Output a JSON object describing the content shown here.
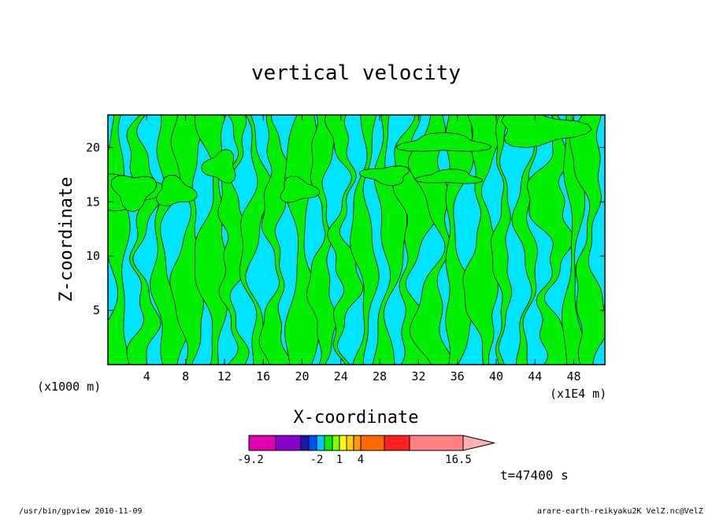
{
  "chart_data": {
    "type": "heatmap",
    "title": "vertical velocity",
    "xlabel": "X-coordinate",
    "ylabel": "Z-coordinate",
    "x_unit_left": "(x1000 m)",
    "x_unit_right": "(x1E4 m)",
    "xlim": [
      0,
      51.2
    ],
    "ylim": [
      0,
      23
    ],
    "x_ticks": [
      "4",
      "8",
      "12",
      "16",
      "20",
      "24",
      "28",
      "32",
      "36",
      "40",
      "44",
      "48"
    ],
    "y_ticks": [
      "5",
      "10",
      "15",
      "20"
    ],
    "field_colors": {
      "negative": "#00e5ff",
      "positive": "#00f000",
      "contour": "#000000"
    },
    "colorbar": {
      "levels": [
        -9.2,
        -8,
        -6,
        -4,
        -2,
        -1,
        0,
        1,
        2,
        3,
        4,
        6,
        8,
        10,
        16.5
      ],
      "colors": [
        "#e000b0",
        "#8800cc",
        "#1a1aaa",
        "#0050ff",
        "#00c8ff",
        "#00f000",
        "#80ff00",
        "#ffff00",
        "#ffcc00",
        "#ff9900",
        "#ff6a00",
        "#ff2020",
        "#ff8080",
        "#ffb0b0"
      ],
      "tick_labels": [
        "-9.2",
        "-2",
        "1",
        "4",
        "16.5"
      ]
    },
    "time_label": "t=47400 s"
  },
  "footer": {
    "left": "/usr/bin/gpview  2010-11-09",
    "right": "arare-earth-reikyaku2K_VelZ.nc@VelZ"
  }
}
